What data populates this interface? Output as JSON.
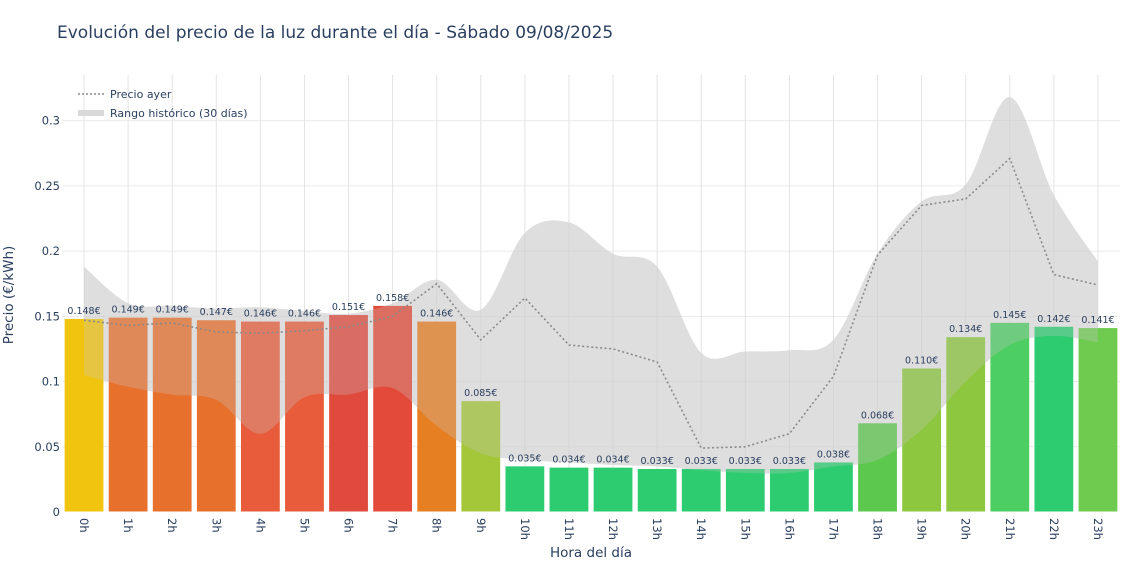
{
  "chart_data": {
    "type": "bar",
    "title": "Evolución del precio de la luz durante el día - Sábado 09/08/2025",
    "xlabel": "Hora del día",
    "ylabel": "Precio (€/kWh)",
    "ylim": [
      0,
      0.335
    ],
    "yticks": [
      0,
      0.05,
      0.1,
      0.15,
      0.2,
      0.25,
      0.3
    ],
    "ytick_labels": [
      "0",
      "0.05",
      "0.1",
      "0.15",
      "0.2",
      "0.25",
      "0.3"
    ],
    "categories": [
      "0h",
      "1h",
      "2h",
      "3h",
      "4h",
      "5h",
      "6h",
      "7h",
      "8h",
      "9h",
      "10h",
      "11h",
      "12h",
      "13h",
      "14h",
      "15h",
      "16h",
      "17h",
      "18h",
      "19h",
      "20h",
      "21h",
      "22h",
      "23h"
    ],
    "values": [
      0.148,
      0.149,
      0.149,
      0.147,
      0.146,
      0.146,
      0.151,
      0.158,
      0.146,
      0.085,
      0.035,
      0.034,
      0.034,
      0.033,
      0.033,
      0.033,
      0.033,
      0.038,
      0.068,
      0.11,
      0.134,
      0.145,
      0.142,
      0.141
    ],
    "value_labels": [
      "0.148€",
      "0.149€",
      "0.149€",
      "0.147€",
      "0.146€",
      "0.146€",
      "0.151€",
      "0.158€",
      "0.146€",
      "0.085€",
      "0.035€",
      "0.034€",
      "0.034€",
      "0.033€",
      "0.033€",
      "0.033€",
      "0.033€",
      "0.038€",
      "0.068€",
      "0.110€",
      "0.134€",
      "0.145€",
      "0.142€",
      "0.141€"
    ],
    "bar_colors": [
      "#f1c40f",
      "#e8702d",
      "#e8702d",
      "#e8702d",
      "#e85c3c",
      "#e85c3c",
      "#e04a3c",
      "#e34a3a",
      "#e67e22",
      "#a4c639",
      "#2ecc71",
      "#2ecc71",
      "#2ecc71",
      "#2ecc71",
      "#2ecc71",
      "#2ecc71",
      "#2ecc71",
      "#2ecc71",
      "#5cc84e",
      "#8dc63f",
      "#8dc63f",
      "#4dce62",
      "#2ecc71",
      "#6ecb4f"
    ],
    "previous_day": {
      "name": "Precio ayer",
      "values": [
        0.147,
        0.143,
        0.145,
        0.138,
        0.137,
        0.139,
        0.142,
        0.15,
        0.175,
        0.132,
        0.164,
        0.128,
        0.125,
        0.115,
        0.049,
        0.05,
        0.06,
        0.104,
        0.197,
        0.235,
        0.24,
        0.271,
        0.182,
        0.174
      ]
    },
    "historical_range": {
      "name": "Rango histórico (30 días)",
      "upper": [
        0.188,
        0.16,
        0.158,
        0.156,
        0.157,
        0.154,
        0.152,
        0.16,
        0.178,
        0.155,
        0.214,
        0.222,
        0.198,
        0.188,
        0.122,
        0.123,
        0.124,
        0.132,
        0.198,
        0.238,
        0.251,
        0.318,
        0.243,
        0.192
      ],
      "lower": [
        0.105,
        0.096,
        0.09,
        0.086,
        0.06,
        0.088,
        0.09,
        0.095,
        0.066,
        0.045,
        0.04,
        0.038,
        0.036,
        0.035,
        0.032,
        0.03,
        0.03,
        0.035,
        0.04,
        0.063,
        0.1,
        0.128,
        0.135,
        0.13
      ]
    }
  }
}
